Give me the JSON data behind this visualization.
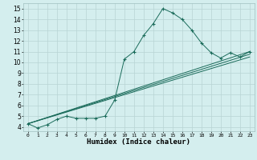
{
  "xlabel": "Humidex (Indice chaleur)",
  "bg_color": "#d4eeee",
  "line_color": "#1a6b5a",
  "grid_color": "#b8d4d4",
  "xlim": [
    -0.5,
    23.5
  ],
  "ylim": [
    3.6,
    15.5
  ],
  "xticks": [
    0,
    1,
    2,
    3,
    4,
    5,
    6,
    7,
    8,
    9,
    10,
    11,
    12,
    13,
    14,
    15,
    16,
    17,
    18,
    19,
    20,
    21,
    22,
    23
  ],
  "yticks": [
    4,
    5,
    6,
    7,
    8,
    9,
    10,
    11,
    12,
    13,
    14,
    15
  ],
  "series_main": {
    "x": [
      0,
      1,
      2,
      3,
      4,
      5,
      6,
      7,
      8,
      9,
      10,
      11,
      12,
      13,
      14,
      15,
      16,
      17,
      18,
      19,
      20,
      21,
      22,
      23
    ],
    "y": [
      4.3,
      3.9,
      4.2,
      4.7,
      5.0,
      4.8,
      4.8,
      4.8,
      5.0,
      6.5,
      10.3,
      11.0,
      12.5,
      13.6,
      15.0,
      14.6,
      14.0,
      13.0,
      11.8,
      10.9,
      10.4,
      10.9,
      10.5,
      11.0
    ]
  },
  "series_lines": [
    {
      "x": [
        0,
        23
      ],
      "y": [
        4.3,
        11.0
      ]
    },
    {
      "x": [
        0,
        23
      ],
      "y": [
        4.3,
        10.5
      ]
    },
    {
      "x": [
        0,
        23
      ],
      "y": [
        4.3,
        10.75
      ]
    }
  ]
}
